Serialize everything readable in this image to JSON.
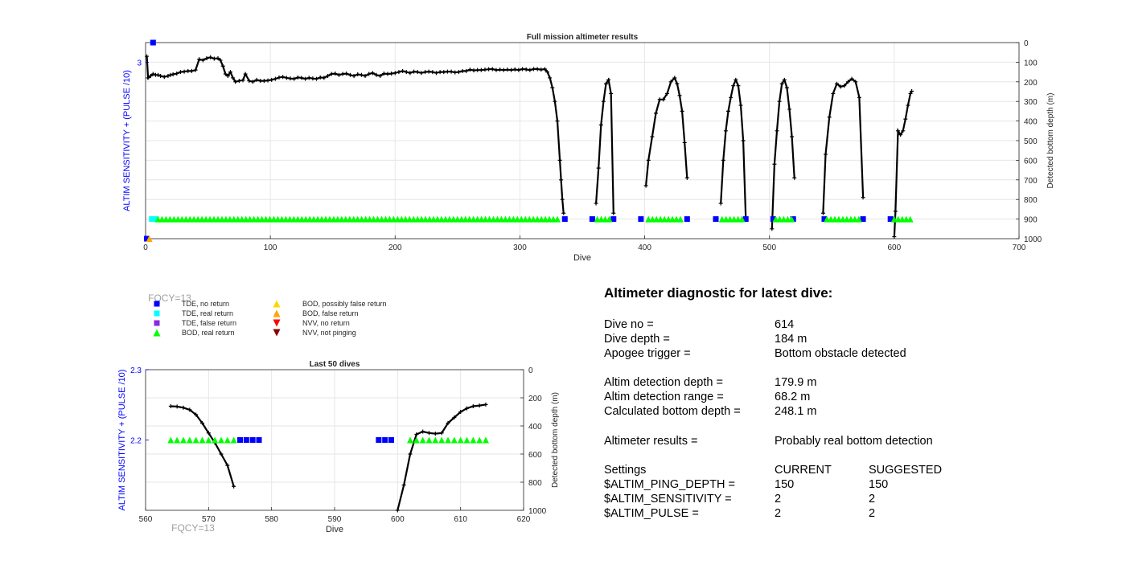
{
  "chart_data": [
    {
      "type": "scatter",
      "title": "Full mission altimeter results",
      "xlabel": "Dive",
      "ylabel_left": "ALTIM SENSITIVITY + (PULSE /10)",
      "ylabel_right": "Detected bottom depth (m)",
      "xlim": [
        0,
        700
      ],
      "xticks": [
        "0",
        "100",
        "200",
        "300",
        "400",
        "500",
        "600",
        "700"
      ],
      "ylim_left": [
        2.1,
        3.1
      ],
      "yticks_left": [
        "3"
      ],
      "ylim_right": [
        0,
        1000
      ],
      "yticks_right": [
        "0",
        "100",
        "200",
        "300",
        "400",
        "500",
        "600",
        "700",
        "800",
        "900",
        "1000"
      ],
      "grid": true,
      "depth_series": [
        {
          "name": "Detected bottom depth",
          "x": [
            1,
            2,
            4,
            6,
            8,
            10,
            12,
            15,
            18,
            20,
            22,
            25,
            28,
            31,
            34,
            37,
            40,
            43,
            46,
            49,
            52,
            55,
            58,
            60,
            62,
            64,
            66,
            68,
            70,
            72,
            75,
            78,
            80,
            83,
            86,
            89,
            92,
            95,
            98,
            101,
            104,
            107,
            110,
            113,
            116,
            119,
            122,
            125,
            128,
            131,
            134,
            137,
            140,
            143,
            146,
            149,
            152,
            155,
            158,
            161,
            164,
            167,
            170,
            173,
            176,
            179,
            182,
            185,
            188,
            191,
            194,
            197,
            200,
            203,
            206,
            209,
            212,
            215,
            218,
            221,
            224,
            227,
            230,
            233,
            236,
            239,
            242,
            245,
            248,
            251,
            254,
            257,
            260,
            263,
            266,
            269,
            272,
            275,
            278,
            281,
            284,
            287,
            290,
            293,
            296,
            299,
            302,
            305,
            308,
            311,
            314,
            317,
            320,
            322,
            324,
            326,
            328,
            330,
            332,
            333,
            334,
            335
          ],
          "y": [
            70,
            180,
            170,
            160,
            165,
            165,
            170,
            175,
            170,
            165,
            162,
            158,
            150,
            148,
            145,
            145,
            140,
            85,
            90,
            80,
            75,
            82,
            80,
            90,
            120,
            160,
            170,
            150,
            180,
            200,
            195,
            192,
            160,
            195,
            200,
            190,
            195,
            195,
            193,
            190,
            185,
            178,
            175,
            180,
            183,
            185,
            178,
            180,
            185,
            180,
            183,
            185,
            178,
            180,
            170,
            160,
            158,
            165,
            160,
            158,
            165,
            170,
            162,
            165,
            170,
            160,
            155,
            165,
            170,
            158,
            160,
            158,
            155,
            150,
            145,
            150,
            155,
            148,
            150,
            155,
            150,
            148,
            150,
            155,
            150,
            150,
            148,
            148,
            152,
            150,
            145,
            145,
            138,
            142,
            140,
            140,
            138,
            136,
            135,
            140,
            138,
            140,
            138,
            140,
            137,
            140,
            135,
            137,
            140,
            135,
            135,
            138,
            135,
            150,
            180,
            230,
            300,
            400,
            600,
            700,
            800,
            870
          ]
        },
        {
          "x": [
            361,
            363,
            365,
            367,
            369,
            371,
            373,
            375
          ],
          "y": [
            820,
            640,
            420,
            300,
            210,
            190,
            260,
            870
          ]
        },
        {
          "x": [
            401,
            403,
            406,
            409,
            412,
            415,
            418,
            421,
            424,
            426,
            428,
            430,
            432,
            434
          ],
          "y": [
            730,
            600,
            480,
            360,
            290,
            290,
            260,
            200,
            180,
            210,
            270,
            350,
            510,
            690
          ]
        },
        {
          "x": [
            461,
            463,
            465,
            467,
            469,
            471,
            473,
            475,
            477,
            479,
            481
          ],
          "y": [
            820,
            600,
            450,
            350,
            280,
            220,
            190,
            220,
            320,
            500,
            890
          ]
        },
        {
          "x": [
            502,
            504,
            506,
            508,
            510,
            512,
            514,
            516,
            518,
            520
          ],
          "y": [
            950,
            620,
            450,
            300,
            210,
            190,
            230,
            340,
            480,
            690
          ]
        },
        {
          "x": [
            543,
            545,
            548,
            551,
            554,
            557,
            560,
            563,
            566,
            569,
            572,
            575
          ],
          "y": [
            870,
            570,
            380,
            260,
            210,
            225,
            220,
            200,
            185,
            200,
            280,
            790
          ]
        },
        {
          "x": [
            600,
            601,
            603,
            605,
            607,
            609,
            611,
            613,
            614
          ],
          "y": [
            990,
            860,
            450,
            470,
            450,
            390,
            320,
            260,
            248
          ]
        }
      ],
      "markers": [
        {
          "name": "TDE, no return",
          "color": "#0000ff",
          "shape": "square",
          "x": [
            1,
            6,
            336,
            358,
            375,
            397,
            434,
            457,
            481,
            503,
            519,
            544,
            575,
            597
          ],
          "y": [
            2.1,
            3.1,
            2.2,
            2.2,
            2.2,
            2.2,
            2.2,
            2.2,
            2.2,
            2.2,
            2.2,
            2.2,
            2.2,
            2.2
          ]
        },
        {
          "name": "TDE, real return",
          "color": "#00ffff",
          "shape": "square",
          "x": [
            5,
            8
          ],
          "y": [
            2.2,
            2.2
          ]
        },
        {
          "name": "BOD, real return",
          "color": "#00ff00",
          "shape": "triangle",
          "x_ranges": [
            [
              10,
              330
            ],
            [
              362,
              373
            ],
            [
              403,
              431
            ],
            [
              462,
              479
            ],
            [
              505,
              518
            ],
            [
              546,
              572
            ],
            [
              600,
              614
            ]
          ],
          "y": 2.2
        },
        {
          "name": "BOD, false return",
          "color": "#ffaa00",
          "shape": "triangle",
          "x": [
            3
          ],
          "y": [
            2.1
          ]
        }
      ]
    },
    {
      "type": "scatter",
      "title": "Last 50 dives",
      "xlabel": "Dive",
      "ylabel_left": "ALTIM SENSITIVITY + (PULSE /10)",
      "ylabel_right": "Detected bottom depth (m)",
      "xlim": [
        560,
        620
      ],
      "xticks": [
        "560",
        "570",
        "580",
        "590",
        "600",
        "610",
        "620"
      ],
      "ylim_left": [
        2.1,
        2.3
      ],
      "yticks_left": [
        "2.2",
        "2.3"
      ],
      "ylim_right": [
        0,
        1000
      ],
      "yticks_right": [
        "0",
        "200",
        "400",
        "600",
        "800",
        "1000"
      ],
      "grid": true,
      "depth_series": [
        {
          "x": [
            564,
            565,
            566,
            567,
            568,
            569,
            570,
            571,
            572,
            573,
            574
          ],
          "y": [
            260,
            262,
            270,
            285,
            320,
            380,
            450,
            520,
            600,
            680,
            830
          ]
        },
        {
          "x": [
            600,
            601,
            602,
            603,
            604,
            605,
            606,
            607,
            608,
            609,
            610,
            611,
            612,
            613,
            614
          ],
          "y": [
            1000,
            820,
            600,
            460,
            440,
            450,
            455,
            450,
            380,
            340,
            300,
            275,
            260,
            255,
            248
          ]
        }
      ],
      "markers": [
        {
          "name": "BOD, real return",
          "color": "#00ff00",
          "shape": "triangle",
          "x": [
            564,
            565,
            566,
            567,
            568,
            569,
            570,
            571,
            572,
            573,
            574,
            602,
            603,
            604,
            605,
            606,
            607,
            608,
            609,
            610,
            611,
            612,
            613,
            614
          ],
          "y": 2.2
        },
        {
          "name": "TDE, no return",
          "color": "#0000ff",
          "shape": "square",
          "x": [
            575,
            576,
            577,
            578,
            597,
            598,
            599
          ],
          "y": 2.2
        }
      ]
    }
  ],
  "fqcy_top": "FQCY=13",
  "fqcy_bottom": "FQCY=13",
  "legend": {
    "col1": [
      {
        "label": "TDE, no return",
        "color": "#0000ff",
        "shape": "square"
      },
      {
        "label": "TDE, real return",
        "color": "#00ffff",
        "shape": "square"
      },
      {
        "label": "TDE, false return",
        "color": "#8a2be2",
        "shape": "square"
      },
      {
        "label": "BOD, real return",
        "color": "#00ff00",
        "shape": "triangle-up"
      }
    ],
    "col2": [
      {
        "label": "BOD, possibly false return",
        "color": "#ffd700",
        "shape": "triangle-up"
      },
      {
        "label": "BOD, false return",
        "color": "#ffa500",
        "shape": "triangle-up"
      },
      {
        "label": "NVV, no return",
        "color": "#ff0000",
        "shape": "triangle-down"
      },
      {
        "label": "NVV, not pinging",
        "color": "#8b0000",
        "shape": "triangle-down"
      }
    ]
  },
  "diagnostic": {
    "title": "Altimeter diagnostic for latest dive:",
    "dive_no_label": "Dive no =",
    "dive_no": "614",
    "dive_depth_label": "Dive depth =",
    "dive_depth": "184 m",
    "apogee_label": "Apogee trigger =",
    "apogee": "Bottom obstacle detected",
    "altim_depth_label": "Altim detection depth =",
    "altim_depth": "179.9 m",
    "altim_range_label": "Altim detection range =",
    "altim_range": "68.2 m",
    "calc_depth_label": "Calculated bottom depth =",
    "calc_depth": "248.1 m",
    "results_label": "Altimeter results =",
    "results": "Probably real bottom detection",
    "settings_label": "Settings",
    "current_label": "CURRENT",
    "suggested_label": "SUGGESTED",
    "ping_label": "$ALTIM_PING_DEPTH =",
    "ping_current": "150",
    "ping_suggested": "150",
    "sens_label": "$ALTIM_SENSITIVITY =",
    "sens_current": "2",
    "sens_suggested": "2",
    "pulse_label": "$ALTIM_PULSE =",
    "pulse_current": "2",
    "pulse_suggested": "2"
  }
}
